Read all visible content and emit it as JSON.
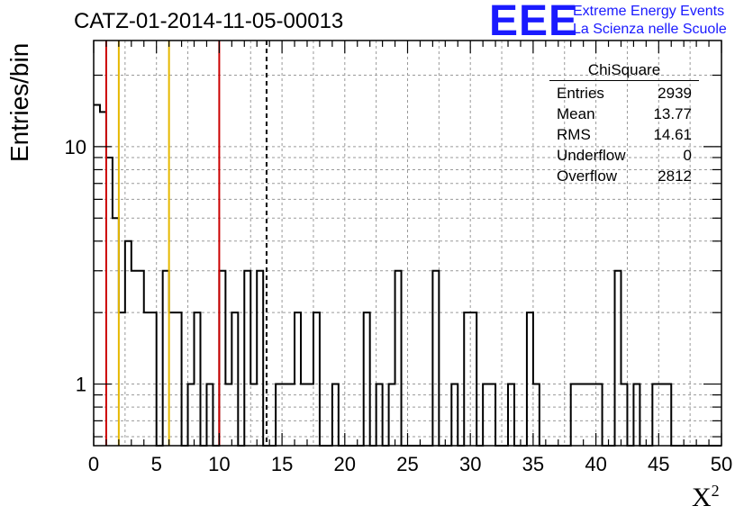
{
  "title": "CATZ-01-2014-11-05-00013",
  "logo": {
    "mark": "EEE",
    "line1": "Extreme Energy Events",
    "line2": "La Scienza nelle Scuole",
    "color": "#1a1aff"
  },
  "stats": {
    "name": "ChiSquare",
    "rows": [
      {
        "label": "Entries",
        "value": "2939"
      },
      {
        "label": "Mean",
        "value": "13.77"
      },
      {
        "label": "RMS",
        "value": "14.61"
      },
      {
        "label": "Underflow",
        "value": "0"
      },
      {
        "label": "Overflow",
        "value": "2812"
      }
    ]
  },
  "chart_data": {
    "type": "histogram",
    "xlabel": "X²",
    "xlabel_base": "X",
    "xlabel_sup": "2",
    "ylabel": "Entries/bin",
    "xlim": [
      0,
      50
    ],
    "ylim": [
      0.55,
      28
    ],
    "yscale": "log",
    "grid": true,
    "x_ticks": [
      0,
      5,
      10,
      15,
      20,
      25,
      30,
      35,
      40,
      45,
      50
    ],
    "y_ticks": [
      1,
      10
    ],
    "bin_width": 0.5,
    "bins": [
      {
        "x": 0.0,
        "y": 15
      },
      {
        "x": 0.5,
        "y": 14
      },
      {
        "x": 1.0,
        "y": 9
      },
      {
        "x": 1.5,
        "y": 5
      },
      {
        "x": 2.0,
        "y": 2
      },
      {
        "x": 2.5,
        "y": 4
      },
      {
        "x": 3.0,
        "y": 3
      },
      {
        "x": 3.5,
        "y": 3
      },
      {
        "x": 4.0,
        "y": 2
      },
      {
        "x": 4.5,
        "y": 2
      },
      {
        "x": 5.0,
        "y": 0
      },
      {
        "x": 5.5,
        "y": 3
      },
      {
        "x": 6.0,
        "y": 2
      },
      {
        "x": 6.5,
        "y": 2
      },
      {
        "x": 7.0,
        "y": 0
      },
      {
        "x": 7.5,
        "y": 1
      },
      {
        "x": 8.0,
        "y": 2
      },
      {
        "x": 8.5,
        "y": 0
      },
      {
        "x": 9.0,
        "y": 1
      },
      {
        "x": 9.5,
        "y": 0
      },
      {
        "x": 10.0,
        "y": 3
      },
      {
        "x": 10.5,
        "y": 1
      },
      {
        "x": 11.0,
        "y": 2
      },
      {
        "x": 11.5,
        "y": 0
      },
      {
        "x": 12.0,
        "y": 3
      },
      {
        "x": 12.5,
        "y": 1
      },
      {
        "x": 13.0,
        "y": 3
      },
      {
        "x": 13.5,
        "y": 0
      },
      {
        "x": 14.0,
        "y": 0
      },
      {
        "x": 14.5,
        "y": 1
      },
      {
        "x": 15.0,
        "y": 1
      },
      {
        "x": 15.5,
        "y": 1
      },
      {
        "x": 16.0,
        "y": 2
      },
      {
        "x": 16.5,
        "y": 1
      },
      {
        "x": 17.0,
        "y": 1
      },
      {
        "x": 17.5,
        "y": 2
      },
      {
        "x": 18.0,
        "y": 0
      },
      {
        "x": 18.5,
        "y": 0
      },
      {
        "x": 19.0,
        "y": 1
      },
      {
        "x": 19.5,
        "y": 0
      },
      {
        "x": 20.0,
        "y": 0
      },
      {
        "x": 20.5,
        "y": 0
      },
      {
        "x": 21.0,
        "y": 0
      },
      {
        "x": 21.5,
        "y": 2
      },
      {
        "x": 22.0,
        "y": 0
      },
      {
        "x": 22.5,
        "y": 1
      },
      {
        "x": 23.0,
        "y": 0
      },
      {
        "x": 23.5,
        "y": 1
      },
      {
        "x": 24.0,
        "y": 3
      },
      {
        "x": 24.5,
        "y": 0
      },
      {
        "x": 25.0,
        "y": 0
      },
      {
        "x": 25.5,
        "y": 0
      },
      {
        "x": 26.0,
        "y": 0
      },
      {
        "x": 26.5,
        "y": 0
      },
      {
        "x": 27.0,
        "y": 3
      },
      {
        "x": 27.5,
        "y": 0
      },
      {
        "x": 28.0,
        "y": 0
      },
      {
        "x": 28.5,
        "y": 1
      },
      {
        "x": 29.0,
        "y": 0
      },
      {
        "x": 29.5,
        "y": 2
      },
      {
        "x": 30.0,
        "y": 2
      },
      {
        "x": 30.5,
        "y": 0
      },
      {
        "x": 31.0,
        "y": 1
      },
      {
        "x": 31.5,
        "y": 1
      },
      {
        "x": 32.0,
        "y": 0
      },
      {
        "x": 32.5,
        "y": 0
      },
      {
        "x": 33.0,
        "y": 1
      },
      {
        "x": 33.5,
        "y": 0
      },
      {
        "x": 34.0,
        "y": 0
      },
      {
        "x": 34.5,
        "y": 2
      },
      {
        "x": 35.0,
        "y": 1
      },
      {
        "x": 35.5,
        "y": 0
      },
      {
        "x": 36.0,
        "y": 0
      },
      {
        "x": 36.5,
        "y": 0
      },
      {
        "x": 37.0,
        "y": 0
      },
      {
        "x": 37.5,
        "y": 0
      },
      {
        "x": 38.0,
        "y": 1
      },
      {
        "x": 38.5,
        "y": 1
      },
      {
        "x": 39.0,
        "y": 1
      },
      {
        "x": 39.5,
        "y": 1
      },
      {
        "x": 40.0,
        "y": 1
      },
      {
        "x": 40.5,
        "y": 0
      },
      {
        "x": 41.0,
        "y": 0
      },
      {
        "x": 41.5,
        "y": 3
      },
      {
        "x": 42.0,
        "y": 1
      },
      {
        "x": 42.5,
        "y": 0
      },
      {
        "x": 43.0,
        "y": 1
      },
      {
        "x": 43.5,
        "y": 0
      },
      {
        "x": 44.0,
        "y": 0
      },
      {
        "x": 44.5,
        "y": 1
      },
      {
        "x": 45.0,
        "y": 1
      },
      {
        "x": 45.5,
        "y": 1
      },
      {
        "x": 46.0,
        "y": 0
      },
      {
        "x": 46.5,
        "y": 0
      },
      {
        "x": 47.0,
        "y": 0
      },
      {
        "x": 47.5,
        "y": 0
      },
      {
        "x": 48.0,
        "y": 0
      },
      {
        "x": 48.5,
        "y": 0
      },
      {
        "x": 49.0,
        "y": 0
      },
      {
        "x": 49.5,
        "y": 0
      }
    ],
    "reference_lines": [
      {
        "x": 1.0,
        "color": "#cc0000",
        "style": "solid"
      },
      {
        "x": 2.0,
        "color": "#e6b800",
        "style": "solid"
      },
      {
        "x": 6.0,
        "color": "#e6b800",
        "style": "solid"
      },
      {
        "x": 10.0,
        "color": "#cc0000",
        "style": "solid"
      },
      {
        "x": 13.77,
        "color": "#000000",
        "style": "dashed"
      }
    ]
  }
}
